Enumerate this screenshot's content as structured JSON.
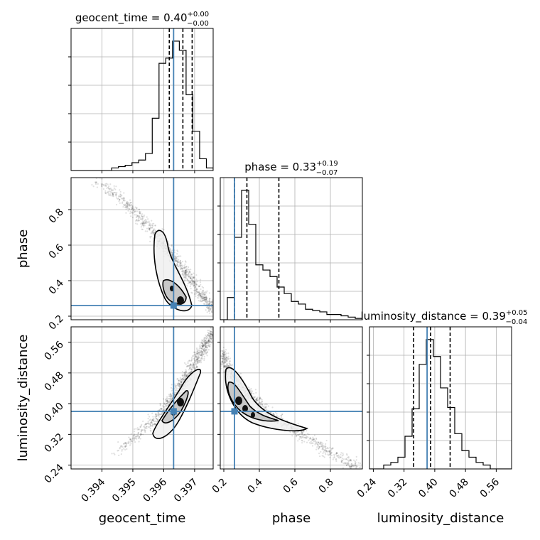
{
  "chart_data": {
    "type": "corner",
    "parameters": [
      {
        "name": "geocent_time",
        "median": "0.40",
        "plus": "+0.00",
        "minus": "−0.00",
        "range": [
          0.393,
          0.3976
        ],
        "truth": 0.39632,
        "quantiles": [
          0.39618,
          0.39662,
          0.39692
        ],
        "ticks": [
          0.394,
          0.395,
          0.396,
          0.397
        ],
        "tick_labels": [
          "0.394",
          "0.395",
          "0.396",
          "0.397"
        ]
      },
      {
        "name": "phase",
        "median": "0.33",
        "plus": "+0.19",
        "minus": "−0.07",
        "range": [
          0.18,
          0.98
        ],
        "truth": 0.26,
        "quantiles": [
          0.26,
          0.33,
          0.51
        ],
        "ticks": [
          0.2,
          0.4,
          0.6,
          0.8
        ],
        "tick_labels": [
          "0.2",
          "0.4",
          "0.6",
          "0.8"
        ]
      },
      {
        "name": "luminosity_distance",
        "median": "0.39",
        "plus": "+0.05",
        "minus": "−0.04",
        "range": [
          0.23,
          0.6
        ],
        "truth": 0.38,
        "quantiles": [
          0.345,
          0.389,
          0.44
        ],
        "ticks": [
          0.24,
          0.32,
          0.4,
          0.48,
          0.56
        ],
        "tick_labels": [
          "0.24",
          "0.32",
          "0.40",
          "0.48",
          "0.56"
        ]
      }
    ],
    "histograms": {
      "geocent_time": [
        0,
        0,
        0,
        0,
        0,
        0,
        0.02,
        0.03,
        0.04,
        0.06,
        0.08,
        0.13,
        0.4,
        0.82,
        0.86,
        0.99,
        0.92,
        0.58,
        0.3,
        0.09,
        0.02
      ],
      "phase": [
        0,
        0.17,
        0.63,
        0.99,
        0.73,
        0.42,
        0.38,
        0.33,
        0.25,
        0.2,
        0.14,
        0.12,
        0.08,
        0.07,
        0.06,
        0.04,
        0.04,
        0.03,
        0.02,
        0.01
      ],
      "luminosity_distance": [
        0,
        0,
        0.03,
        0.05,
        0.09,
        0.25,
        0.46,
        0.8,
        0.99,
        0.86,
        0.62,
        0.47,
        0.27,
        0.14,
        0.09,
        0.05,
        0.03,
        0,
        0,
        0
      ]
    },
    "scatter_style": "grey points with black density contours",
    "truth_color": "#4682b4",
    "grid": true
  }
}
